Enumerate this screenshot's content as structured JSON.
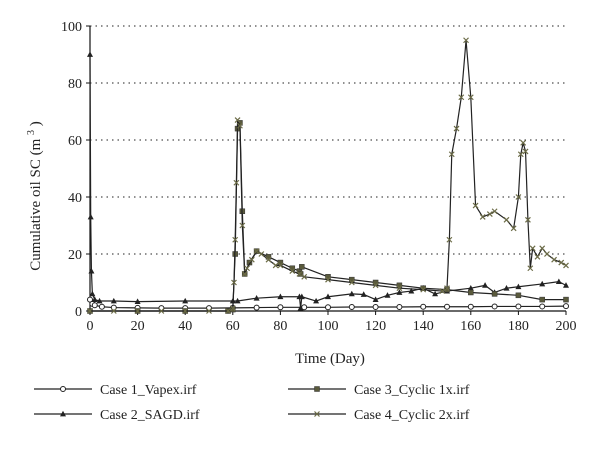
{
  "chart_data": {
    "type": "line",
    "title": "",
    "xlabel": "Time (Day)",
    "ylabel": {
      "main": "Cumulative oil SC (m",
      "sup": "3",
      "close": ")"
    },
    "xlim": [
      0,
      200
    ],
    "ylim": [
      0,
      100
    ],
    "x_ticks": [
      0,
      20,
      40,
      60,
      80,
      100,
      120,
      140,
      160,
      180,
      200
    ],
    "y_ticks": [
      0,
      20,
      40,
      60,
      80,
      100
    ],
    "grid": "horizontal dotted",
    "legend_position": "bottom",
    "series": [
      {
        "name": "Case 1_Vapex.irf",
        "marker": "circle",
        "color": "#222222",
        "points": [
          [
            0,
            4
          ],
          [
            1,
            2.5
          ],
          [
            2,
            2
          ],
          [
            5,
            1.5
          ],
          [
            10,
            1.2
          ],
          [
            20,
            1.1
          ],
          [
            30,
            1.0
          ],
          [
            40,
            1.0
          ],
          [
            50,
            1.0
          ],
          [
            60,
            1.1
          ],
          [
            70,
            1.2
          ],
          [
            80,
            1.3
          ],
          [
            90,
            1.3
          ],
          [
            100,
            1.3
          ],
          [
            110,
            1.4
          ],
          [
            120,
            1.4
          ],
          [
            130,
            1.4
          ],
          [
            140,
            1.5
          ],
          [
            150,
            1.5
          ],
          [
            160,
            1.5
          ],
          [
            170,
            1.6
          ],
          [
            180,
            1.6
          ],
          [
            190,
            1.6
          ],
          [
            200,
            1.7
          ]
        ]
      },
      {
        "name": "Case 2_SAGD.irf",
        "marker": "triangle",
        "color": "#222222",
        "points": [
          [
            0,
            90
          ],
          [
            0.3,
            33
          ],
          [
            0.6,
            14
          ],
          [
            1,
            6
          ],
          [
            2,
            4
          ],
          [
            4,
            3.5
          ],
          [
            10,
            3.5
          ],
          [
            20,
            3.3
          ],
          [
            40,
            3.5
          ],
          [
            60,
            3.5
          ],
          [
            62,
            3.5
          ],
          [
            70,
            4.5
          ],
          [
            80,
            5
          ],
          [
            88,
            5
          ],
          [
            88.5,
            1
          ],
          [
            89,
            5
          ],
          [
            95,
            3.5
          ],
          [
            100,
            5
          ],
          [
            110,
            6
          ],
          [
            115,
            5.8
          ],
          [
            120,
            4
          ],
          [
            125,
            5.5
          ],
          [
            130,
            6.5
          ],
          [
            135,
            7
          ],
          [
            140,
            8
          ],
          [
            145,
            6
          ],
          [
            150,
            7
          ],
          [
            160,
            8
          ],
          [
            166,
            9
          ],
          [
            170,
            6.5
          ],
          [
            175,
            8
          ],
          [
            180,
            8.5
          ],
          [
            190,
            9.5
          ],
          [
            197,
            10.3
          ],
          [
            200,
            9
          ]
        ]
      },
      {
        "name": "Case 3_Cyclic 1x.irf",
        "marker": "square",
        "color": "#5a5a3c",
        "points": [
          [
            0,
            0
          ],
          [
            20,
            0
          ],
          [
            40,
            0
          ],
          [
            58,
            0
          ],
          [
            60,
            0.5
          ],
          [
            61,
            20
          ],
          [
            62,
            64
          ],
          [
            63,
            66
          ],
          [
            64,
            35
          ],
          [
            65,
            13
          ],
          [
            67,
            17
          ],
          [
            70,
            21
          ],
          [
            75,
            19
          ],
          [
            80,
            17
          ],
          [
            85,
            15
          ],
          [
            88,
            14
          ],
          [
            88.5,
            13
          ],
          [
            89,
            15.5
          ],
          [
            100,
            12
          ],
          [
            110,
            11
          ],
          [
            120,
            10
          ],
          [
            130,
            9
          ],
          [
            140,
            8
          ],
          [
            150,
            7.5
          ],
          [
            160,
            6.5
          ],
          [
            170,
            6
          ],
          [
            180,
            5.5
          ],
          [
            190,
            4
          ],
          [
            200,
            4
          ]
        ]
      },
      {
        "name": "Case 4_Cyclic 2x.irf",
        "marker": "x",
        "color": "#6b6b46",
        "points": [
          [
            0,
            0
          ],
          [
            10,
            0
          ],
          [
            20,
            0
          ],
          [
            30,
            0
          ],
          [
            40,
            0
          ],
          [
            50,
            0
          ],
          [
            58,
            0
          ],
          [
            60,
            1
          ],
          [
            60.5,
            10
          ],
          [
            61,
            25
          ],
          [
            61.5,
            45
          ],
          [
            62,
            67
          ],
          [
            63,
            65
          ],
          [
            64,
            30
          ],
          [
            65,
            13
          ],
          [
            66,
            15
          ],
          [
            68,
            18
          ],
          [
            70,
            21
          ],
          [
            72,
            20
          ],
          [
            75,
            18
          ],
          [
            78,
            16
          ],
          [
            80,
            16
          ],
          [
            85,
            14
          ],
          [
            88,
            13
          ],
          [
            90,
            12
          ],
          [
            100,
            11
          ],
          [
            110,
            10
          ],
          [
            120,
            9
          ],
          [
            130,
            8
          ],
          [
            140,
            7.5
          ],
          [
            148,
            7
          ],
          [
            150,
            8
          ],
          [
            151,
            25
          ],
          [
            152,
            55
          ],
          [
            154,
            64
          ],
          [
            156,
            75
          ],
          [
            158,
            95
          ],
          [
            160,
            75
          ],
          [
            162,
            37
          ],
          [
            165,
            33
          ],
          [
            168,
            34
          ],
          [
            170,
            35
          ],
          [
            175,
            32
          ],
          [
            178,
            29
          ],
          [
            180,
            40
          ],
          [
            181,
            55
          ],
          [
            182,
            59
          ],
          [
            183,
            56
          ],
          [
            184,
            32
          ],
          [
            185,
            15
          ],
          [
            186,
            22
          ],
          [
            188,
            19
          ],
          [
            190,
            22
          ],
          [
            192,
            20
          ],
          [
            195,
            18
          ],
          [
            198,
            17
          ],
          [
            200,
            16
          ]
        ]
      }
    ]
  }
}
